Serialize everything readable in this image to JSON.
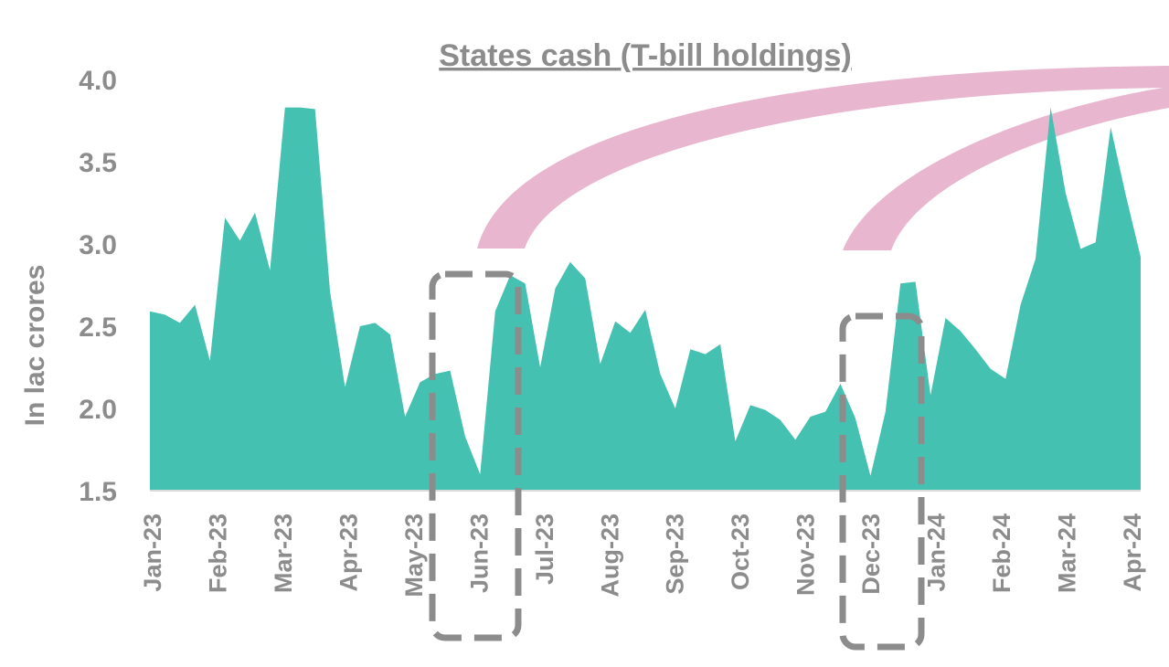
{
  "chart_data": {
    "type": "area",
    "title": "States cash (T-bill holdings)",
    "ylabel": "In lac crores",
    "xlabel": "",
    "ylim": [
      1.5,
      4.0
    ],
    "yticks": [
      "1.5",
      "2.0",
      "2.5",
      "3.0",
      "3.5",
      "4.0"
    ],
    "x_tick_labels": [
      "Jan-23",
      "Feb-23",
      "Mar-23",
      "Apr-23",
      "May-23",
      "Jun-23",
      "Jul-23",
      "Aug-23",
      "Sep-23",
      "Oct-23",
      "Nov-23",
      "Dec-23",
      "Jan-24",
      "Feb-24",
      "Mar-24",
      "Apr-24"
    ],
    "grid": false,
    "legend": "none",
    "colors": {
      "area": "#45c1b1",
      "highlight_box": "#8c8c8c",
      "arrow": "#e8b6cf",
      "text": "#8c8c8c"
    },
    "series": [
      {
        "values": [
          2.59,
          2.57,
          2.52,
          2.63,
          2.29,
          3.16,
          3.02,
          3.19,
          2.84,
          3.83,
          3.83,
          3.82,
          2.71,
          2.13,
          2.5,
          2.52,
          2.45,
          1.95,
          2.16,
          2.21,
          2.23,
          1.83,
          1.6,
          2.59,
          2.81,
          2.76,
          2.25,
          2.73,
          2.89,
          2.79,
          2.27,
          2.53,
          2.46,
          2.6,
          2.21,
          2.0,
          2.36,
          2.33,
          2.39,
          1.8,
          2.02,
          1.99,
          1.93,
          1.81,
          1.95,
          1.98,
          2.15,
          1.94,
          1.59,
          1.98,
          2.76,
          2.77,
          2.08,
          2.55,
          2.47,
          2.36,
          2.24,
          2.18,
          2.63,
          2.91,
          3.83,
          3.31,
          2.97,
          3.01,
          3.71,
          3.3,
          2.92
        ]
      }
    ],
    "highlights": [
      {
        "label": "Jun-23"
      },
      {
        "label": "Dec-23"
      }
    ]
  }
}
